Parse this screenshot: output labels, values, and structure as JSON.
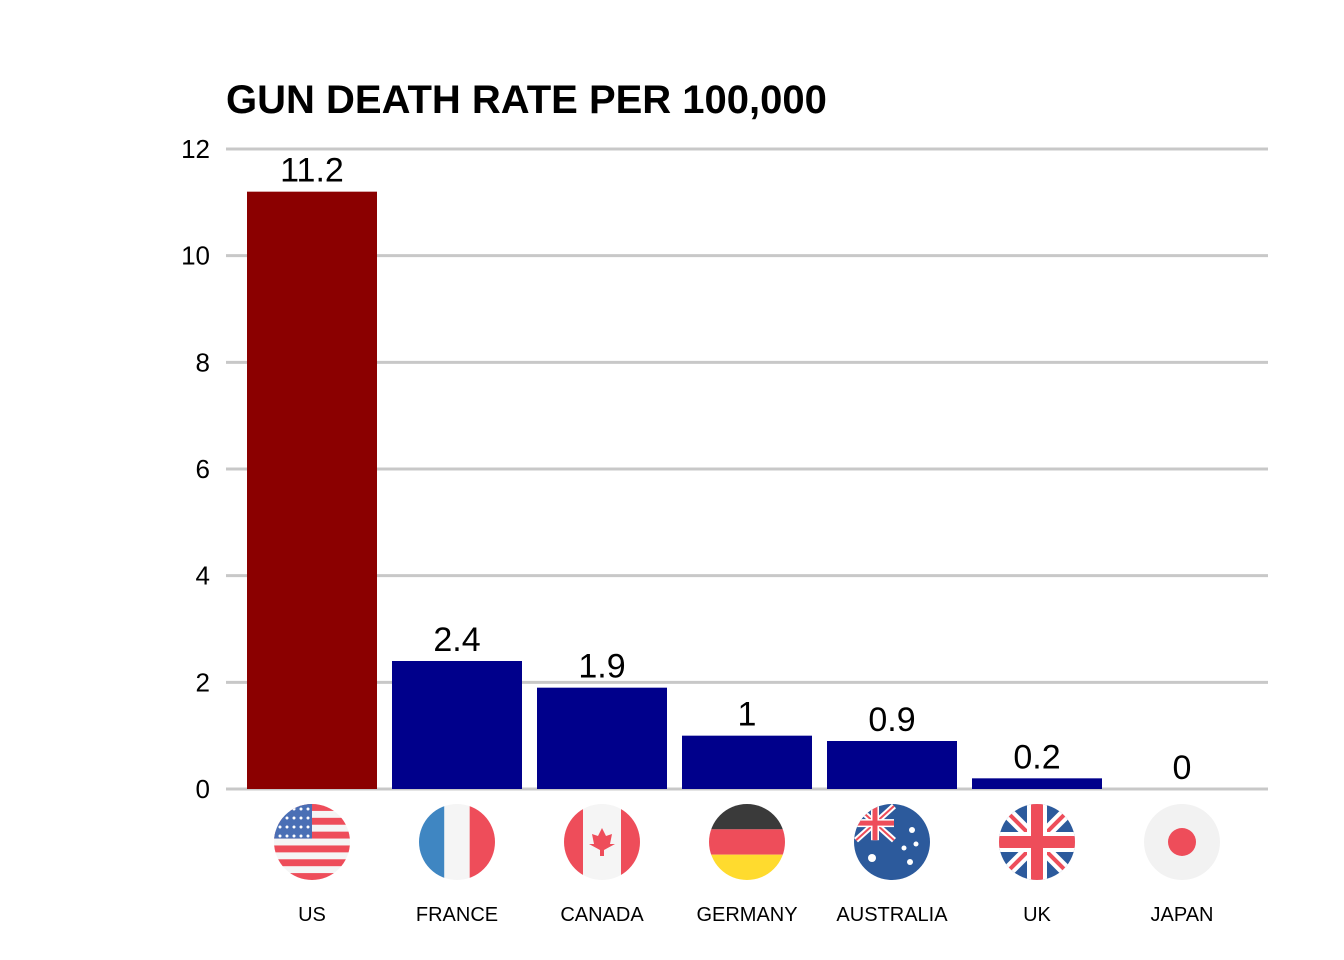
{
  "chart_data": {
    "type": "bar",
    "title": "GUN DEATH RATE PER 100,000",
    "xlabel": "",
    "ylabel": "",
    "categories": [
      "US",
      "FRANCE",
      "CANADA",
      "GERMANY",
      "AUSTRALIA",
      "UK",
      "JAPAN"
    ],
    "values": [
      11.2,
      2.4,
      1.9,
      1,
      0.9,
      0.2,
      0
    ],
    "value_labels": [
      "11.2",
      "2.4",
      "1.9",
      "1",
      "0.9",
      "0.2",
      "0"
    ],
    "ylim": [
      0,
      12
    ],
    "yticks": [
      "0",
      "2",
      "4",
      "6",
      "8",
      "10",
      "12"
    ],
    "grid": true,
    "bar_colors": [
      "#8b0000",
      "#00008b",
      "#00008b",
      "#00008b",
      "#00008b",
      "#00008b",
      "#00008b"
    ],
    "flag_icons": [
      "us-flag-icon",
      "france-flag-icon",
      "canada-flag-icon",
      "germany-flag-icon",
      "australia-flag-icon",
      "uk-flag-icon",
      "japan-flag-icon"
    ]
  }
}
